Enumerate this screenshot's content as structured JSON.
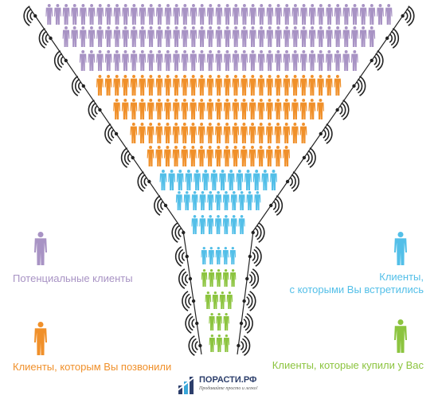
{
  "colors": {
    "potential": "#a893c4",
    "called": "#f0902a",
    "met": "#53bfe8",
    "bought": "#8cc43f",
    "outline": "#222222",
    "logo_dark": "#2c3e6b",
    "logo_light": "#3aa7d9"
  },
  "stages": [
    {
      "key": "potential",
      "label": "Потенциальные клиенты",
      "color": "#a893c4"
    },
    {
      "key": "called",
      "label": "Клиенты, которым Вы позвонили",
      "color": "#f0902a"
    },
    {
      "key": "met",
      "label_line1": "Клиенты,",
      "label_line2": "с которыми Вы встретились",
      "color": "#53bfe8"
    },
    {
      "key": "bought",
      "label": "Клиенты, которые купили у Вас",
      "color": "#8cc43f"
    }
  ],
  "logo": {
    "name": "ПОРАСТИ.РФ",
    "slogan": "Продавайте просто и легко!"
  },
  "icons": {
    "person": "person-icon",
    "sound_waves": "sound-wave-icon"
  }
}
